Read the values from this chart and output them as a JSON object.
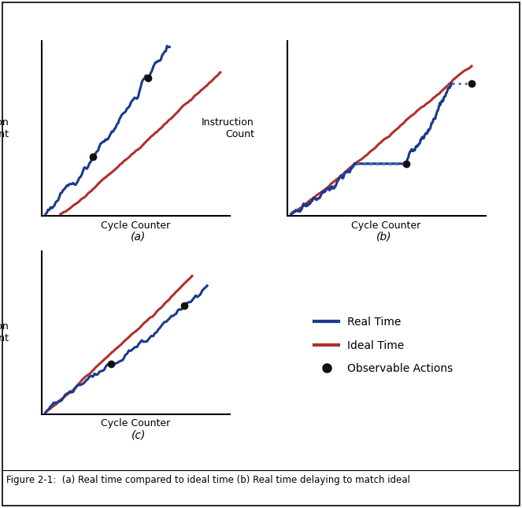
{
  "title": "Figure 2-1:  (a) Real time compared to ideal time (b) Real time delaying to match ideal",
  "blue_color": "#1a3a8c",
  "red_color": "#b03030",
  "dot_color": "#111111",
  "dashed_color": "#4a7abf",
  "xlabel": "Cycle Counter",
  "ylabel": "Instruction\nCount",
  "legend_labels": [
    "Real Time",
    "Ideal Time",
    "Observable Actions"
  ],
  "fig_bg": "#ffffff",
  "caption_a": "(a)",
  "caption_b": "(b)",
  "caption_c": "(c)"
}
